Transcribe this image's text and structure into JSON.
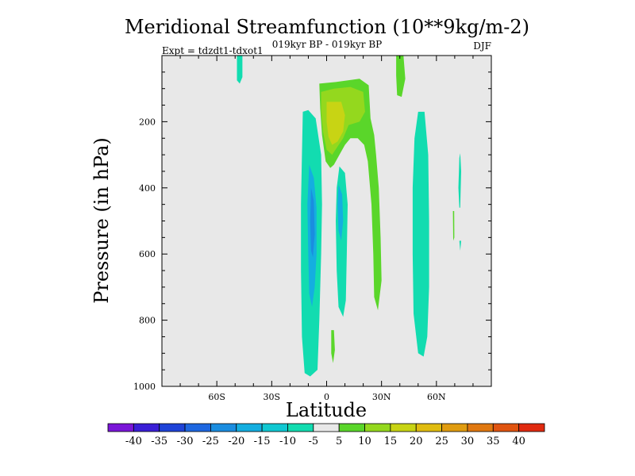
{
  "chart_data": {
    "type": "heatmap",
    "title": "Meridional Streamfunction (10**9kg/m-2)",
    "subtitle": "019kyr BP - 019kyr BP",
    "left_note": "Expt = tdzdt1-tdxot1",
    "right_note": "DJF",
    "xlabel": "Latitude",
    "ylabel": "Pressure (in hPa)",
    "x_range": [
      -90,
      90
    ],
    "y_range": [
      0,
      1000
    ],
    "y_inverted": true,
    "x_ticks": [
      {
        "value": -60,
        "label": "60S"
      },
      {
        "value": -30,
        "label": "30S"
      },
      {
        "value": 0,
        "label": "0"
      },
      {
        "value": 30,
        "label": "30N"
      },
      {
        "value": 60,
        "label": "60N"
      }
    ],
    "y_ticks": [
      {
        "value": 200,
        "label": "200"
      },
      {
        "value": 400,
        "label": "400"
      },
      {
        "value": 600,
        "label": "600"
      },
      {
        "value": 800,
        "label": "800"
      },
      {
        "value": 1000,
        "label": "1000"
      }
    ],
    "background_color": "#e8e8e8",
    "colorbar": {
      "levels": [
        -40,
        -35,
        -30,
        -25,
        -20,
        -15,
        -10,
        -5,
        5,
        10,
        15,
        20,
        25,
        30,
        35,
        40
      ],
      "labels": [
        "-40",
        "-35",
        "-30",
        "-25",
        "-20",
        "-15",
        "-10",
        "-5",
        "5",
        "10",
        "15",
        "20",
        "25",
        "30",
        "35",
        "40"
      ],
      "colors": [
        "#7a16d8",
        "#3a1fd6",
        "#1f43d8",
        "#1e67e0",
        "#1a8de0",
        "#14aee0",
        "#10c8d2",
        "#12dcb0",
        "#e8e8e8",
        "#5ad62a",
        "#94d81e",
        "#c8d414",
        "#e0bc10",
        "#e09c10",
        "#e07810",
        "#e05410",
        "#e02a10"
      ]
    },
    "contour_regions": [
      {
        "name": "thin-upper-cell-60s",
        "level": -10,
        "color": "#12dcb0",
        "points": [
          [
            -49,
            0
          ],
          [
            -46,
            0
          ],
          [
            -46,
            65
          ],
          [
            -47.5,
            85
          ],
          [
            -49,
            75
          ]
        ]
      },
      {
        "name": "south-cell-outer",
        "level": -10,
        "color": "#12dcb0",
        "points": [
          [
            -13,
            170
          ],
          [
            -10,
            165
          ],
          [
            -6,
            190
          ],
          [
            -3,
            300
          ],
          [
            -2.5,
            450
          ],
          [
            -3,
            600
          ],
          [
            -4,
            800
          ],
          [
            -5,
            950
          ],
          [
            -9,
            970
          ],
          [
            -12,
            960
          ],
          [
            -13.5,
            850
          ],
          [
            -14,
            650
          ],
          [
            -14,
            450
          ],
          [
            -13.5,
            300
          ]
        ]
      },
      {
        "name": "south-cell-mid",
        "level": -15,
        "color": "#14aee0",
        "points": [
          [
            -9.5,
            330
          ],
          [
            -7,
            370
          ],
          [
            -5.5,
            460
          ],
          [
            -5.5,
            600
          ],
          [
            -6.5,
            700
          ],
          [
            -8,
            760
          ],
          [
            -9.5,
            720
          ],
          [
            -10,
            600
          ],
          [
            -10.5,
            450
          ]
        ]
      },
      {
        "name": "south-cell-core",
        "level": -20,
        "color": "#1a8de0",
        "points": [
          [
            -8.5,
            400
          ],
          [
            -7,
            440
          ],
          [
            -6.5,
            540
          ],
          [
            -7.5,
            610
          ],
          [
            -8.5,
            590
          ],
          [
            -9,
            500
          ]
        ]
      },
      {
        "name": "equatorial-cell-outer",
        "level": -10,
        "color": "#12dcb0",
        "points": [
          [
            7,
            335
          ],
          [
            10,
            355
          ],
          [
            11.5,
            450
          ],
          [
            11,
            600
          ],
          [
            10.5,
            740
          ],
          [
            9,
            790
          ],
          [
            6.5,
            760
          ],
          [
            5.5,
            650
          ],
          [
            5,
            500
          ],
          [
            5.5,
            400
          ]
        ]
      },
      {
        "name": "equatorial-cell-core",
        "level": -15,
        "color": "#14aee0",
        "points": [
          [
            6.5,
            390
          ],
          [
            8.5,
            420
          ],
          [
            9,
            500
          ],
          [
            8,
            560
          ],
          [
            6.5,
            530
          ],
          [
            6,
            450
          ]
        ]
      },
      {
        "name": "north-cell-60n",
        "level": -10,
        "color": "#12dcb0",
        "points": [
          [
            50,
            170
          ],
          [
            53.5,
            170
          ],
          [
            55.5,
            300
          ],
          [
            56,
            500
          ],
          [
            56,
            700
          ],
          [
            55,
            850
          ],
          [
            53,
            910
          ],
          [
            50,
            900
          ],
          [
            47.5,
            780
          ],
          [
            47,
            600
          ],
          [
            47,
            400
          ],
          [
            48,
            250
          ]
        ]
      },
      {
        "name": "thin-cell-75n",
        "level": -10,
        "color": "#12dcb0",
        "points": [
          [
            72.5,
            310
          ],
          [
            73,
            295
          ],
          [
            73.5,
            350
          ],
          [
            73,
            460
          ],
          [
            72.5,
            460
          ],
          [
            72,
            400
          ]
        ]
      },
      {
        "name": "tiny-cell-73n",
        "level": -10,
        "color": "#12dcb0",
        "points": [
          [
            72.5,
            560
          ],
          [
            73.5,
            560
          ],
          [
            73,
            590
          ]
        ]
      },
      {
        "name": "upper-positive-outer",
        "level": 5,
        "color": "#5ad62a",
        "points": [
          [
            -4,
            85
          ],
          [
            5,
            80
          ],
          [
            18,
            70
          ],
          [
            23,
            90
          ],
          [
            24,
            190
          ],
          [
            26,
            240
          ],
          [
            27,
            300
          ],
          [
            28.5,
            400
          ],
          [
            29.5,
            550
          ],
          [
            30,
            680
          ],
          [
            28,
            770
          ],
          [
            26,
            730
          ],
          [
            25.5,
            600
          ],
          [
            24.5,
            450
          ],
          [
            22.5,
            320
          ],
          [
            20.5,
            270
          ],
          [
            17,
            250
          ],
          [
            13,
            250
          ],
          [
            10,
            270
          ],
          [
            7,
            300
          ],
          [
            4,
            330
          ],
          [
            2,
            340
          ],
          [
            -0.5,
            320
          ],
          [
            -2.5,
            240
          ],
          [
            -3.5,
            160
          ]
        ]
      },
      {
        "name": "upper-positive-mid",
        "level": 10,
        "color": "#94d81e",
        "points": [
          [
            -3,
            110
          ],
          [
            4,
            100
          ],
          [
            13,
            95
          ],
          [
            20,
            110
          ],
          [
            21,
            170
          ],
          [
            18,
            200
          ],
          [
            12,
            210
          ],
          [
            9,
            250
          ],
          [
            6,
            275
          ],
          [
            3,
            300
          ],
          [
            0,
            285
          ],
          [
            -2,
            230
          ],
          [
            -3,
            170
          ]
        ]
      },
      {
        "name": "upper-positive-core",
        "level": 15,
        "color": "#c8d414",
        "points": [
          [
            0,
            140
          ],
          [
            8,
            140
          ],
          [
            10,
            180
          ],
          [
            9,
            230
          ],
          [
            6,
            260
          ],
          [
            3,
            270
          ],
          [
            1,
            245
          ],
          [
            0,
            200
          ]
        ]
      },
      {
        "name": "tropopause-cell-40n",
        "level": 5,
        "color": "#5ad62a",
        "points": [
          [
            38,
            0
          ],
          [
            42,
            0
          ],
          [
            43,
            70
          ],
          [
            41,
            125
          ],
          [
            38.5,
            120
          ],
          [
            38,
            60
          ]
        ]
      },
      {
        "name": "thin-line-70n",
        "level": 5,
        "color": "#5ad62a",
        "points": [
          [
            69,
            470
          ],
          [
            69.7,
            470
          ],
          [
            69.8,
            550
          ],
          [
            69.2,
            560
          ]
        ]
      },
      {
        "name": "near-surface-eq-cell",
        "level": 5,
        "color": "#5ad62a",
        "points": [
          [
            2.5,
            830
          ],
          [
            4,
            830
          ],
          [
            4.5,
            890
          ],
          [
            3.5,
            930
          ],
          [
            2.5,
            900
          ]
        ]
      }
    ]
  }
}
